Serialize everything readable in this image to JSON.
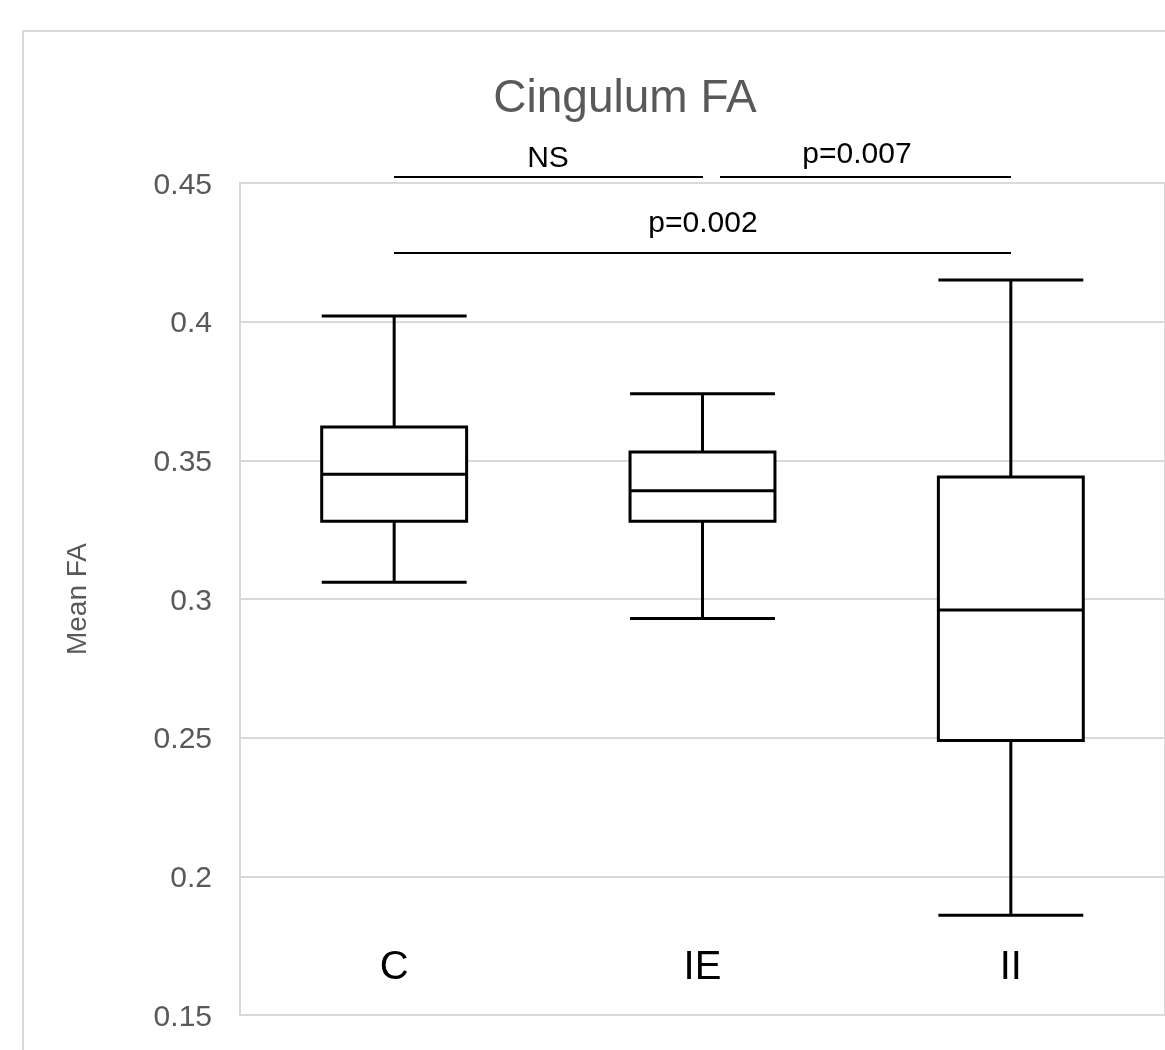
{
  "chart_data": {
    "type": "box",
    "title": "Cingulum FA",
    "ylabel": "Mean FA",
    "categories": [
      "C",
      "IE",
      "II"
    ],
    "boxes": [
      {
        "low": 0.306,
        "q1": 0.328,
        "median": 0.345,
        "q3": 0.362,
        "high": 0.402
      },
      {
        "low": 0.293,
        "q1": 0.328,
        "median": 0.339,
        "q3": 0.353,
        "high": 0.374
      },
      {
        "low": 0.186,
        "q1": 0.249,
        "median": 0.296,
        "q3": 0.344,
        "high": 0.415
      }
    ],
    "color": "#000000",
    "ylim": [
      0.15,
      0.45
    ],
    "yticks": [
      0.15,
      0.2,
      0.25,
      0.3,
      0.35,
      0.4,
      0.45
    ],
    "grid": "y",
    "annotations": [
      "NS",
      "p=0.007",
      "p=0.002"
    ]
  }
}
